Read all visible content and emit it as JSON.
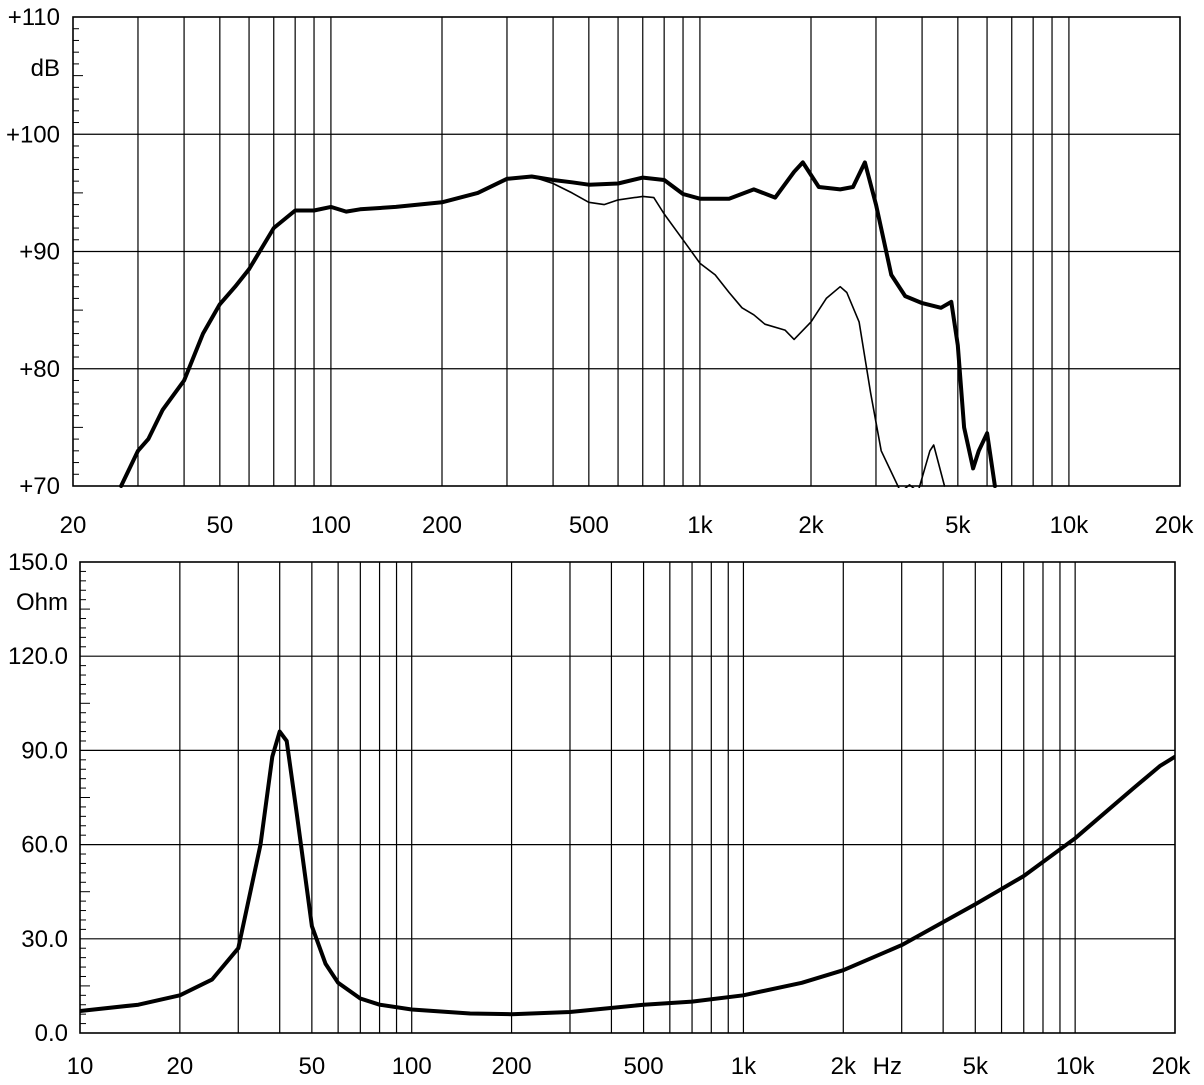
{
  "chart_data": [
    {
      "type": "line",
      "x_scale": "log",
      "xlim": [
        20,
        20000
      ],
      "ylim": [
        70,
        110
      ],
      "ylabel": "dB",
      "y_ticks": [
        {
          "value": 110,
          "label": "+110"
        },
        {
          "value": 100,
          "label": "+100"
        },
        {
          "value": 90,
          "label": "+90"
        },
        {
          "value": 80,
          "label": "+80"
        },
        {
          "value": 70,
          "label": "+70"
        }
      ],
      "x_ticks": [
        {
          "value": 20,
          "label": "20"
        },
        {
          "value": 50,
          "label": "50"
        },
        {
          "value": 100,
          "label": "100"
        },
        {
          "value": 200,
          "label": "200"
        },
        {
          "value": 500,
          "label": "500"
        },
        {
          "value": 1000,
          "label": "1k"
        },
        {
          "value": 2000,
          "label": "2k"
        },
        {
          "value": 5000,
          "label": "5k"
        },
        {
          "value": 10000,
          "label": "10k"
        },
        {
          "value": 20000,
          "label": "20k"
        }
      ],
      "grid": true,
      "series": [
        {
          "style": "thick",
          "x": [
            27,
            30,
            32,
            35,
            40,
            45,
            50,
            55,
            60,
            70,
            80,
            90,
            100,
            110,
            120,
            150,
            200,
            250,
            300,
            350,
            400,
            450,
            500,
            600,
            700,
            800,
            900,
            1000,
            1200,
            1400,
            1600,
            1800,
            1900,
            2100,
            2400,
            2600,
            2800,
            3000,
            3300,
            3600,
            4000,
            4500,
            4800,
            5000,
            5200,
            5500,
            5700,
            6000,
            6300
          ],
          "y": [
            70,
            73,
            74,
            76.5,
            79,
            83,
            85.5,
            87,
            88.5,
            92,
            93.5,
            93.5,
            93.8,
            93.4,
            93.6,
            93.8,
            94.2,
            95,
            96.2,
            96.4,
            96.1,
            95.9,
            95.7,
            95.8,
            96.3,
            96.1,
            94.9,
            94.5,
            94.5,
            95.3,
            94.6,
            96.8,
            97.6,
            95.5,
            95.3,
            95.5,
            97.6,
            94,
            88,
            86.2,
            85.6,
            85.2,
            85.7,
            82,
            75,
            71.5,
            73,
            74.5,
            70
          ]
        },
        {
          "style": "thin",
          "x": [
            350,
            400,
            450,
            500,
            550,
            600,
            700,
            750,
            800,
            900,
            1000,
            1100,
            1200,
            1300,
            1400,
            1500,
            1700,
            1800,
            2000,
            2200,
            2400,
            2500,
            2700,
            2900,
            3100,
            3500,
            3700,
            3900,
            4200,
            4300,
            4600
          ],
          "y": [
            96.4,
            95.8,
            95,
            94.2,
            94,
            94.4,
            94.7,
            94.6,
            93.2,
            91,
            89,
            88,
            86.5,
            85.2,
            84.6,
            83.8,
            83.3,
            82.5,
            84,
            86,
            87,
            86.5,
            84,
            78,
            73,
            69.5,
            70.1,
            69.5,
            73,
            73.5,
            70
          ]
        }
      ]
    },
    {
      "type": "line",
      "x_scale": "log",
      "xlim": [
        10,
        20000
      ],
      "ylim": [
        0,
        150
      ],
      "ylabel": "Ohm",
      "xlabel": "Hz",
      "y_ticks": [
        {
          "value": 150,
          "label": "150.0"
        },
        {
          "value": 120,
          "label": "120.0"
        },
        {
          "value": 90,
          "label": "90.0"
        },
        {
          "value": 60,
          "label": "60.0"
        },
        {
          "value": 30,
          "label": "30.0"
        },
        {
          "value": 0,
          "label": "0.0"
        }
      ],
      "x_ticks": [
        {
          "value": 10,
          "label": "10"
        },
        {
          "value": 20,
          "label": "20"
        },
        {
          "value": 50,
          "label": "50"
        },
        {
          "value": 100,
          "label": "100"
        },
        {
          "value": 200,
          "label": "200"
        },
        {
          "value": 500,
          "label": "500"
        },
        {
          "value": 1000,
          "label": "1k"
        },
        {
          "value": 2000,
          "label": "2k"
        },
        {
          "value": 5000,
          "label": "5k"
        },
        {
          "value": 10000,
          "label": "10k"
        },
        {
          "value": 20000,
          "label": "20k"
        }
      ],
      "grid": true,
      "series": [
        {
          "style": "thick",
          "x": [
            10,
            15,
            20,
            25,
            30,
            35,
            38,
            40,
            42,
            45,
            50,
            55,
            60,
            70,
            80,
            100,
            150,
            200,
            300,
            500,
            700,
            1000,
            1500,
            2000,
            3000,
            5000,
            7000,
            10000,
            15000,
            18000,
            20000
          ],
          "y": [
            7,
            9,
            12,
            17,
            27,
            60,
            88,
            96,
            93,
            70,
            34,
            22,
            16,
            11,
            9,
            7.5,
            6.2,
            6,
            6.7,
            9,
            10,
            12,
            16,
            20,
            28,
            41,
            50,
            62,
            78,
            85,
            88
          ]
        }
      ]
    }
  ]
}
